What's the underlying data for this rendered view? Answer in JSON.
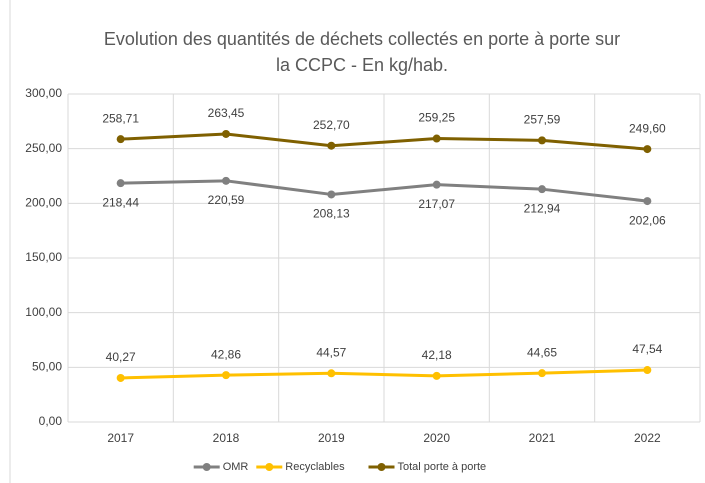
{
  "chart_data": {
    "type": "line",
    "title": [
      "Evolution des quantités de déchets collectés en porte à porte sur",
      "la CCPC - En kg/hab."
    ],
    "categories": [
      "2017",
      "2018",
      "2019",
      "2020",
      "2021",
      "2022"
    ],
    "series": [
      {
        "name": "OMR",
        "color": "#808080",
        "values": [
          218.44,
          220.59,
          208.13,
          217.07,
          212.94,
          202.06
        ],
        "value_labels": [
          "218,44",
          "220,59",
          "208,13",
          "217,07",
          "212,94",
          "202,06"
        ]
      },
      {
        "name": "Recyclables",
        "color": "#ffc000",
        "values": [
          40.27,
          42.86,
          44.57,
          42.18,
          44.65,
          47.54
        ],
        "value_labels": [
          "40,27",
          "42,86",
          "44,57",
          "42,18",
          "44,65",
          "47,54"
        ]
      },
      {
        "name": "Total porte à porte",
        "color": "#7f6000",
        "values": [
          258.71,
          263.45,
          252.7,
          259.25,
          257.59,
          249.6
        ],
        "value_labels": [
          "258,71",
          "263,45",
          "252,70",
          "259,25",
          "257,59",
          "249,60"
        ]
      }
    ],
    "ylim": [
      0,
      300
    ],
    "yticks": [
      {
        "value": 0,
        "label": "0,00"
      },
      {
        "value": 50,
        "label": "50,00"
      },
      {
        "value": 100,
        "label": "100,00"
      },
      {
        "value": 150,
        "label": "150,00"
      },
      {
        "value": 200,
        "label": "200,00"
      },
      {
        "value": 250,
        "label": "250,00"
      },
      {
        "value": 300,
        "label": "300,00"
      }
    ],
    "grid": true
  }
}
